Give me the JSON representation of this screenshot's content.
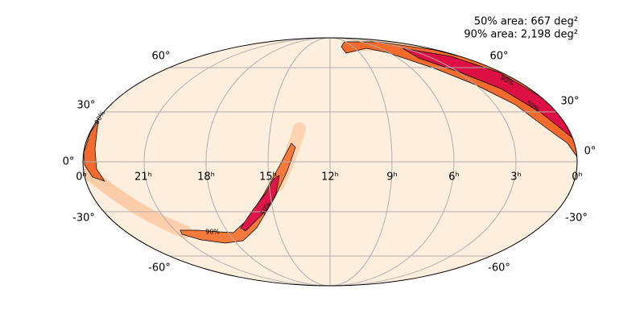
{
  "annotations": [
    "50% area: 667 deg²",
    "90% area: 2,198 deg²"
  ],
  "ra_labels": [
    "0ʰ",
    "21ʰ",
    "18ʰ",
    "15ʰ",
    "12ʰ",
    "9ʰ",
    "6ʰ",
    "3ʰ",
    "0ʰ"
  ],
  "dec_labels_left": [
    "60°",
    "30°",
    "0°",
    "-30°",
    "-60°"
  ],
  "dec_labels_right": [
    "60°",
    "30°",
    "0°",
    "-30°",
    "-60°"
  ],
  "contour_labels": [
    "90%",
    "50%",
    "90%",
    "50%",
    "90%"
  ]
}
